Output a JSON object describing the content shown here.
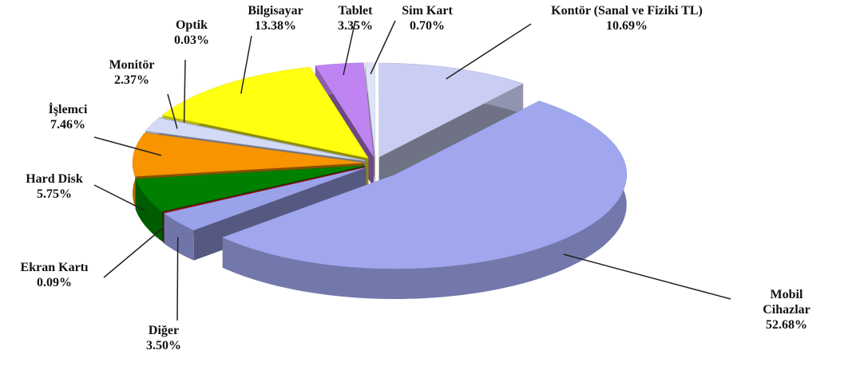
{
  "chart_data": {
    "type": "pie3d",
    "categories": [
      "Kontör (Sanal ve Fiziki TL)",
      "Mobil Cihazlar",
      "Diğer",
      "Ekran Kartı",
      "Hard Disk",
      "İşlemci",
      "Monitör",
      "Optik",
      "Bilgisayar",
      "Tablet",
      "Sim Kart"
    ],
    "values": [
      10.69,
      52.68,
      3.5,
      0.09,
      5.75,
      7.46,
      2.37,
      0.03,
      13.38,
      3.35,
      0.7
    ],
    "value_labels": [
      "10.69%",
      "52.68%",
      "3.50%",
      "0.09%",
      "5.75%",
      "7.46%",
      "2.37%",
      "0.03%",
      "13.38%",
      "3.35%",
      "0.70%"
    ],
    "colors": [
      "#c9cef2",
      "#a0a7ee",
      "#9aa2ea",
      "#c00000",
      "#008000",
      "#f79400",
      "#d3daf6",
      "#bcc6ea",
      "#ffff10",
      "#c084f2",
      "#dfe3f6"
    ]
  }
}
